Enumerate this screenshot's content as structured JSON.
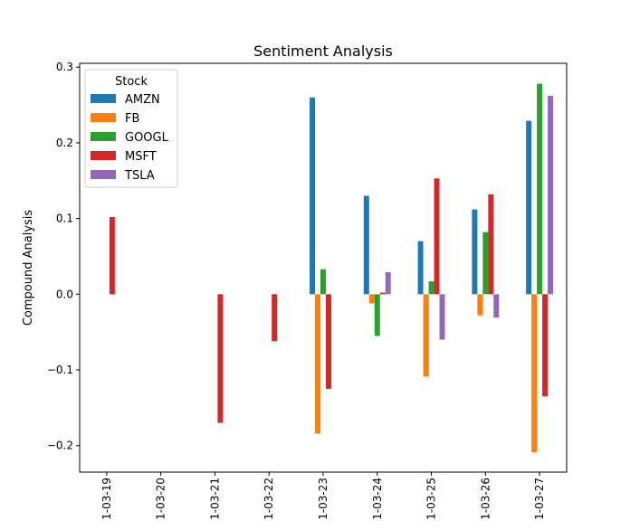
{
  "chart_data": {
    "type": "bar",
    "title": "Sentiment Analysis",
    "xlabel": "",
    "ylabel": "Compound Analysis",
    "categories": [
      "1-03-19",
      "1-03-20",
      "1-03-21",
      "1-03-22",
      "1-03-23",
      "1-03-24",
      "1-03-25",
      "1-03-26",
      "1-03-27"
    ],
    "ylim": [
      -0.235,
      0.305
    ],
    "yticks": [
      -0.2,
      -0.1,
      0.0,
      0.1,
      0.2,
      0.3
    ],
    "ytick_labels": [
      "−0.2",
      "−0.1",
      "0.0",
      "0.1",
      "0.2",
      "0.3"
    ],
    "grid": false,
    "legend": {
      "title": "Stock",
      "placement": "top-left"
    },
    "series": [
      {
        "name": "AMZN",
        "color": "#1f77b4",
        "values": [
          null,
          null,
          null,
          null,
          0.26,
          0.13,
          0.07,
          0.112,
          0.229
        ]
      },
      {
        "name": "FB",
        "color": "#ff7f0e",
        "values": [
          null,
          null,
          null,
          null,
          -0.184,
          -0.012,
          -0.109,
          -0.028,
          -0.209
        ]
      },
      {
        "name": "GOOGL",
        "color": "#2ca02c",
        "values": [
          null,
          null,
          null,
          null,
          0.033,
          -0.055,
          0.017,
          0.082,
          0.278
        ]
      },
      {
        "name": "MSFT",
        "color": "#d62728",
        "values": [
          0.102,
          null,
          -0.17,
          -0.062,
          -0.125,
          0.002,
          0.153,
          0.132,
          -0.135
        ]
      },
      {
        "name": "TSLA",
        "color": "#9467bd",
        "values": [
          null,
          null,
          null,
          null,
          null,
          0.029,
          -0.06,
          -0.031,
          0.262
        ]
      }
    ]
  }
}
